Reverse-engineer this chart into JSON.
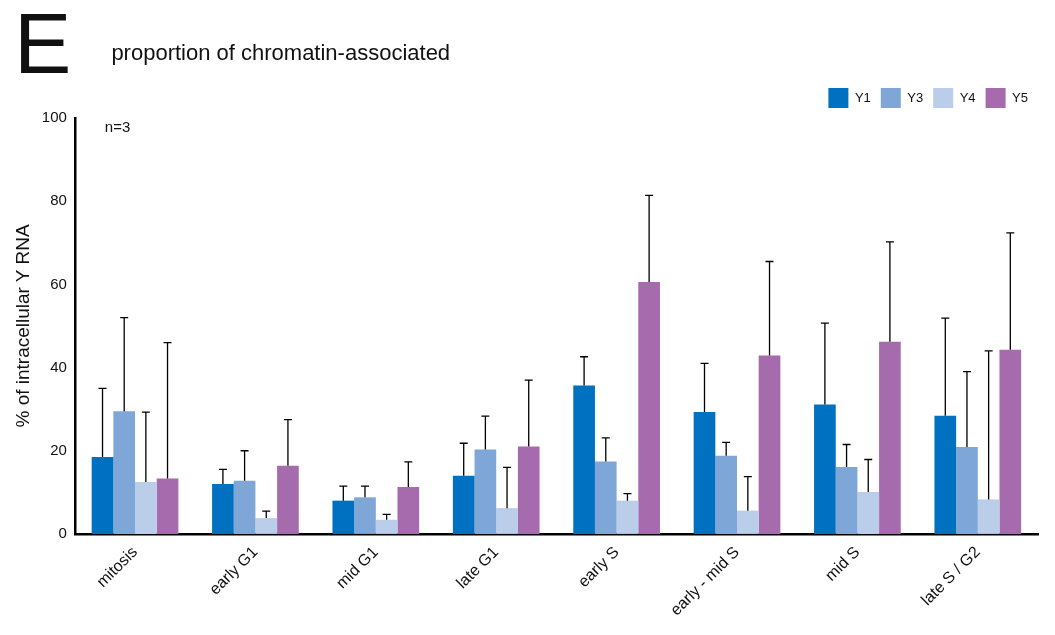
{
  "chart_data": {
    "type": "bar",
    "title": "proportion of chromatin-associated",
    "ylabel": "% of intracellular Y RNA",
    "annotations": [
      "E",
      "n=3"
    ],
    "categories": [
      "mitosis",
      "early G1",
      "mid G1",
      "late G1",
      "early S",
      "early - mid S",
      "mid S",
      "late S / G2"
    ],
    "series": [
      {
        "name": "Y1",
        "color": "#0070c0",
        "values": [
          18.5,
          12,
          8,
          14,
          35.7,
          29.3,
          31.1,
          28.4
        ],
        "errors": [
          [
            18.5,
            35
          ],
          [
            12,
            15.5
          ],
          [
            8,
            11.5
          ],
          [
            14,
            21.8
          ],
          [
            35.7,
            42.6
          ],
          [
            29.3,
            41
          ],
          [
            31.1,
            50.7
          ],
          [
            28.4,
            51.9
          ]
        ]
      },
      {
        "name": "Y3",
        "color": "#7ea7d8",
        "values": [
          29.5,
          12.8,
          8.8,
          20.3,
          17.4,
          18.8,
          16.1,
          20.9
        ],
        "errors": [
          [
            29.5,
            52
          ],
          [
            12.8,
            20
          ],
          [
            8.8,
            11.5
          ],
          [
            20.3,
            28.3
          ],
          [
            17.4,
            23.1
          ],
          [
            18.8,
            22
          ],
          [
            16.1,
            21.5
          ],
          [
            20.9,
            39
          ]
        ]
      },
      {
        "name": "Y4",
        "color": "#bacde9",
        "values": [
          12.5,
          3.8,
          3.4,
          6.2,
          8,
          5.6,
          10.1,
          8.3
        ],
        "errors": [
          [
            12.5,
            29.3
          ],
          [
            3.8,
            5.5
          ],
          [
            3.4,
            4.7
          ],
          [
            6.2,
            16
          ],
          [
            8,
            9.7
          ],
          [
            5.6,
            13.8
          ],
          [
            10.1,
            17.9
          ],
          [
            8.3,
            44
          ]
        ]
      },
      {
        "name": "Y5",
        "color": "#a66bac",
        "values": [
          13.3,
          16.4,
          11.3,
          21,
          60.6,
          42.9,
          46.2,
          44.3
        ],
        "errors": [
          [
            13.3,
            46
          ],
          [
            16.4,
            27.5
          ],
          [
            11.3,
            17.3
          ],
          [
            21,
            37
          ],
          [
            60.6,
            81.4
          ],
          [
            42.9,
            65.5
          ],
          [
            46.2,
            70.2
          ],
          [
            44.3,
            72.4
          ]
        ]
      }
    ],
    "ylim": [
      0,
      100
    ],
    "yticks": [
      0,
      20,
      40,
      60,
      80,
      100
    ],
    "grid": false,
    "legend": "top right"
  }
}
